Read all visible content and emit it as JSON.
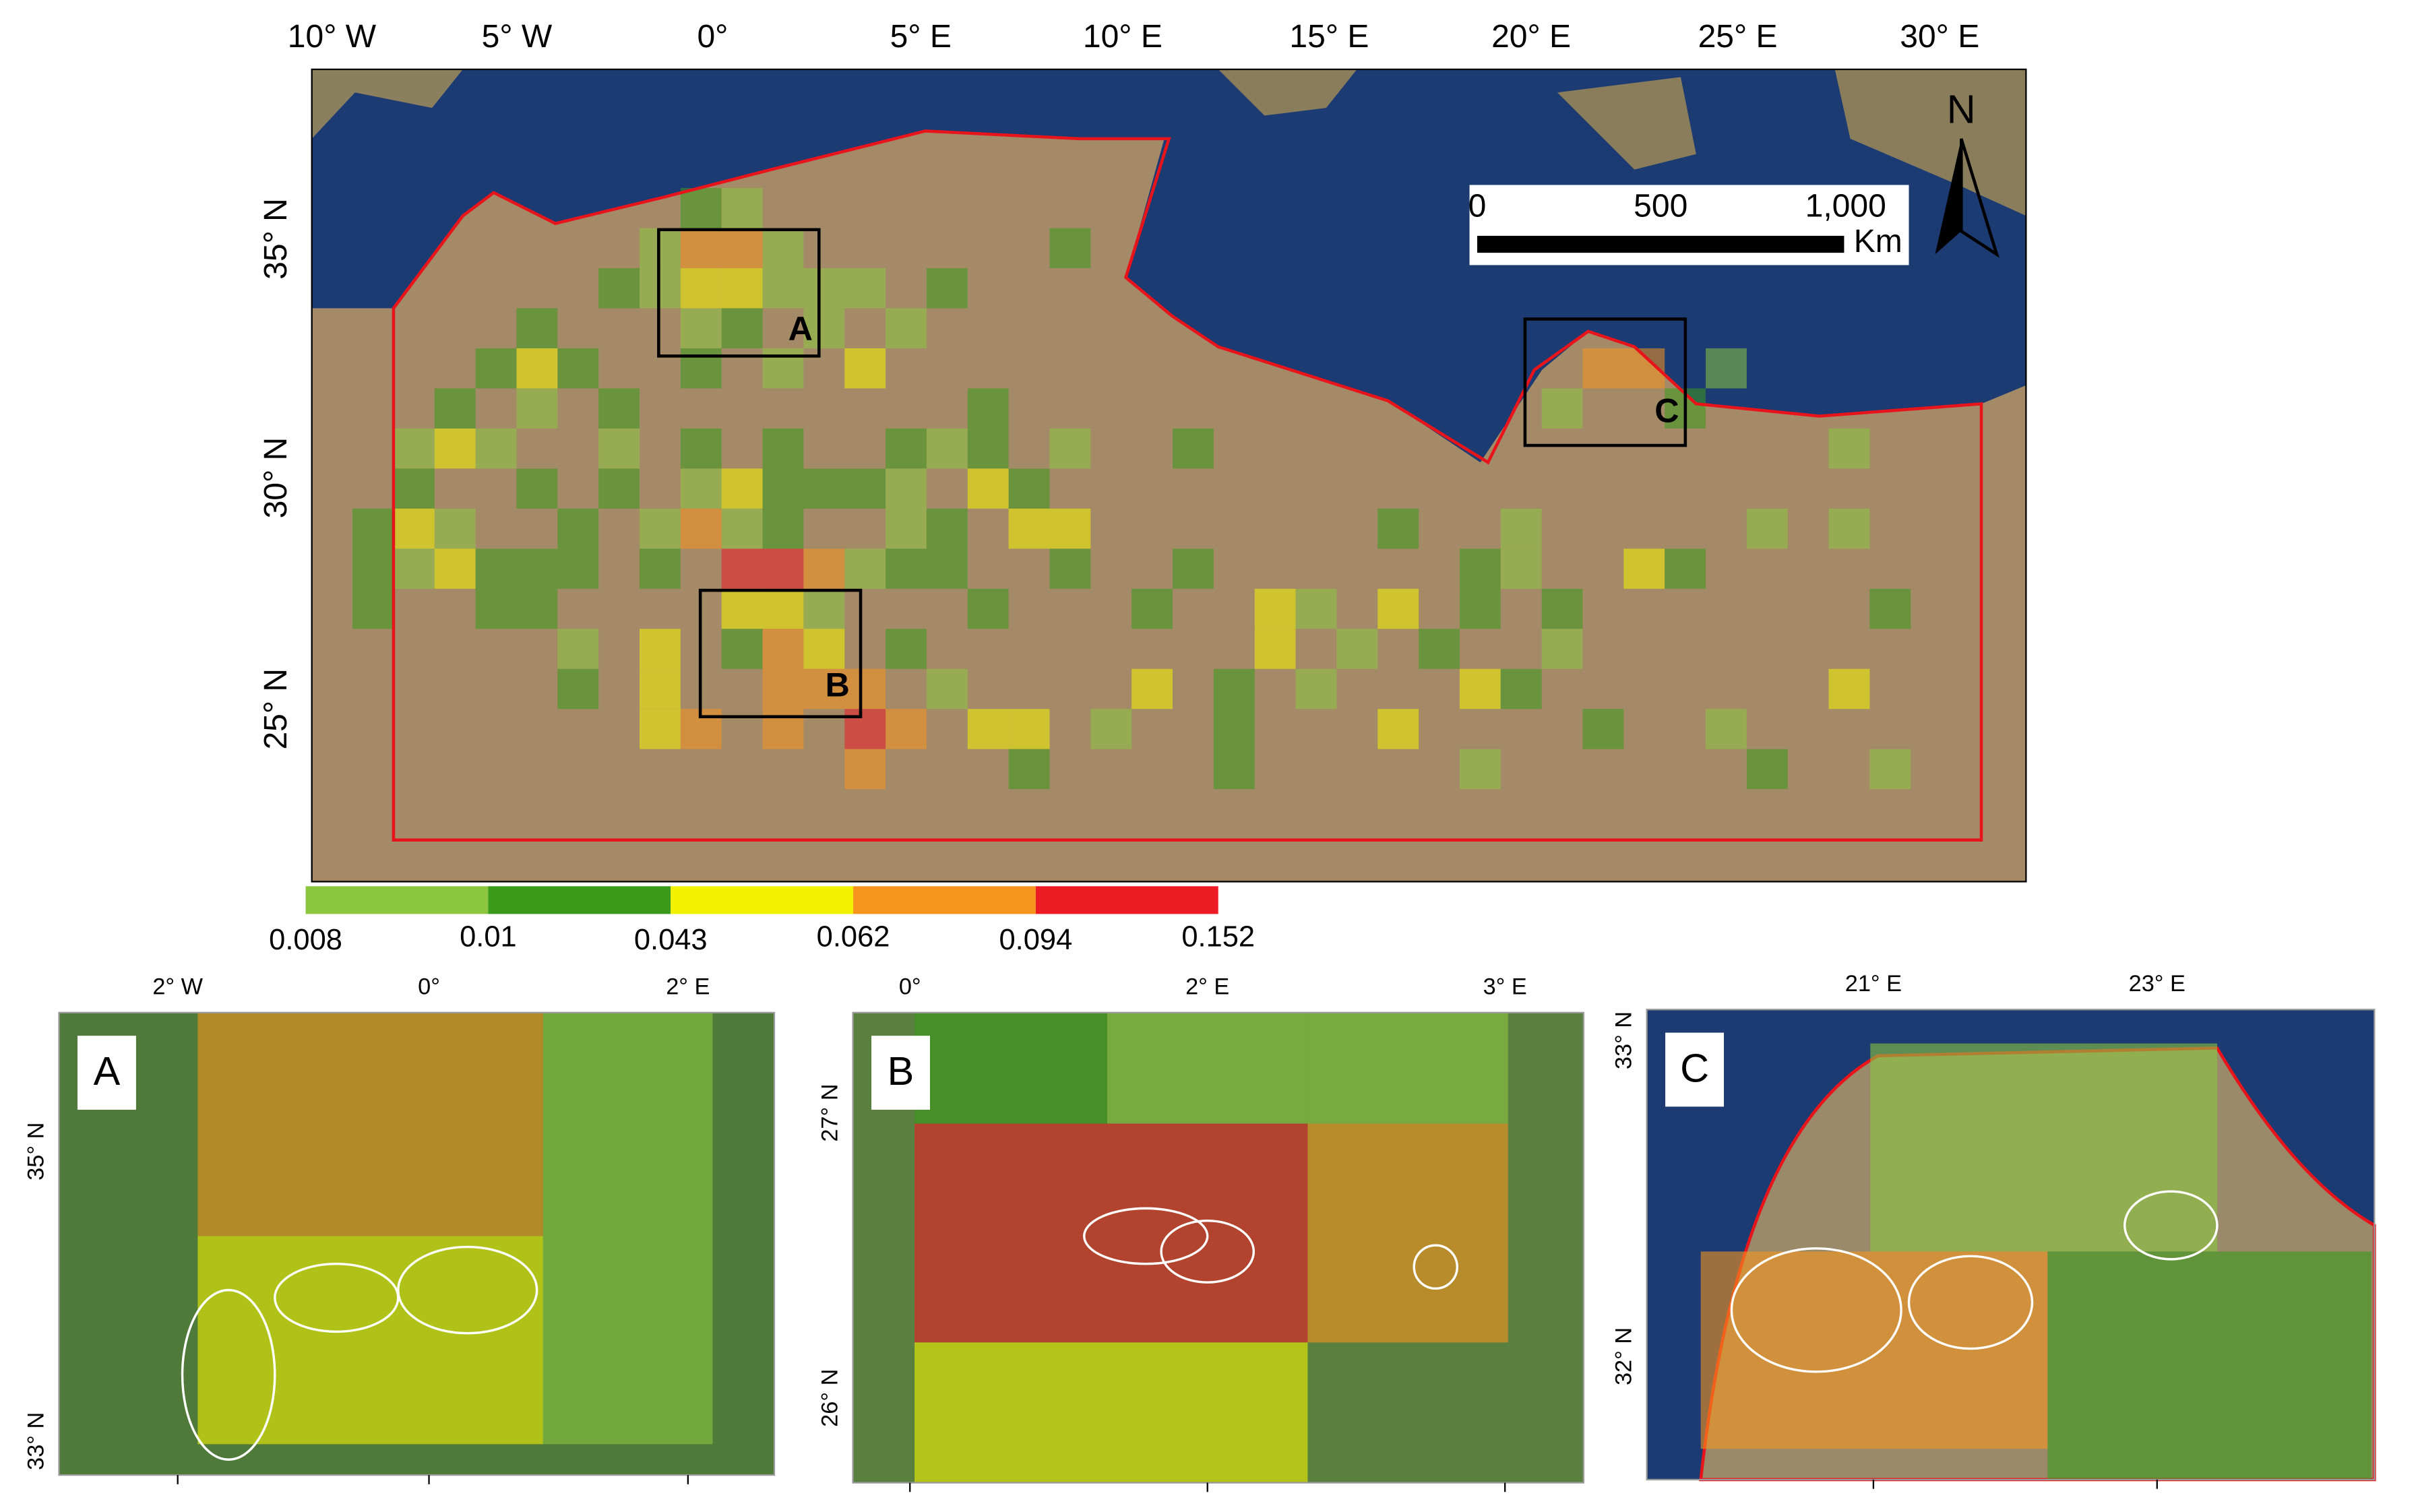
{
  "main_map": {
    "lon_labels": [
      "10° W",
      "5° W",
      "0°",
      "5° E",
      "10° E",
      "15° E",
      "20° E",
      "25° E",
      "30° E"
    ],
    "lat_labels": [
      "35° N",
      "30° N",
      "25° N"
    ],
    "scale_bar": {
      "labels": [
        "0",
        "500",
        "1,000"
      ],
      "unit": "Km"
    },
    "north": "N",
    "boxes": [
      "A",
      "B",
      "C"
    ]
  },
  "legend": {
    "breaks": [
      0.008,
      0.01,
      0.043,
      0.062,
      0.094,
      0.152
    ],
    "colors": [
      "#8cc63f",
      "#3a9a1a",
      "#f2f200",
      "#f7941d",
      "#ed1c24"
    ]
  },
  "insets": [
    {
      "label": "A",
      "lon_labels": [
        "2° W",
        "0°",
        "2° E"
      ],
      "lat_labels": [
        "35° N",
        "33° N"
      ]
    },
    {
      "label": "B",
      "lon_labels": [
        "0°",
        "2° E",
        "3° E"
      ],
      "lat_labels": [
        "27° N",
        "26° N"
      ]
    },
    {
      "label": "C",
      "lon_labels": [
        "21° E",
        "23° E"
      ],
      "lat_labels": [
        "33° N",
        "32° N"
      ]
    }
  ]
}
